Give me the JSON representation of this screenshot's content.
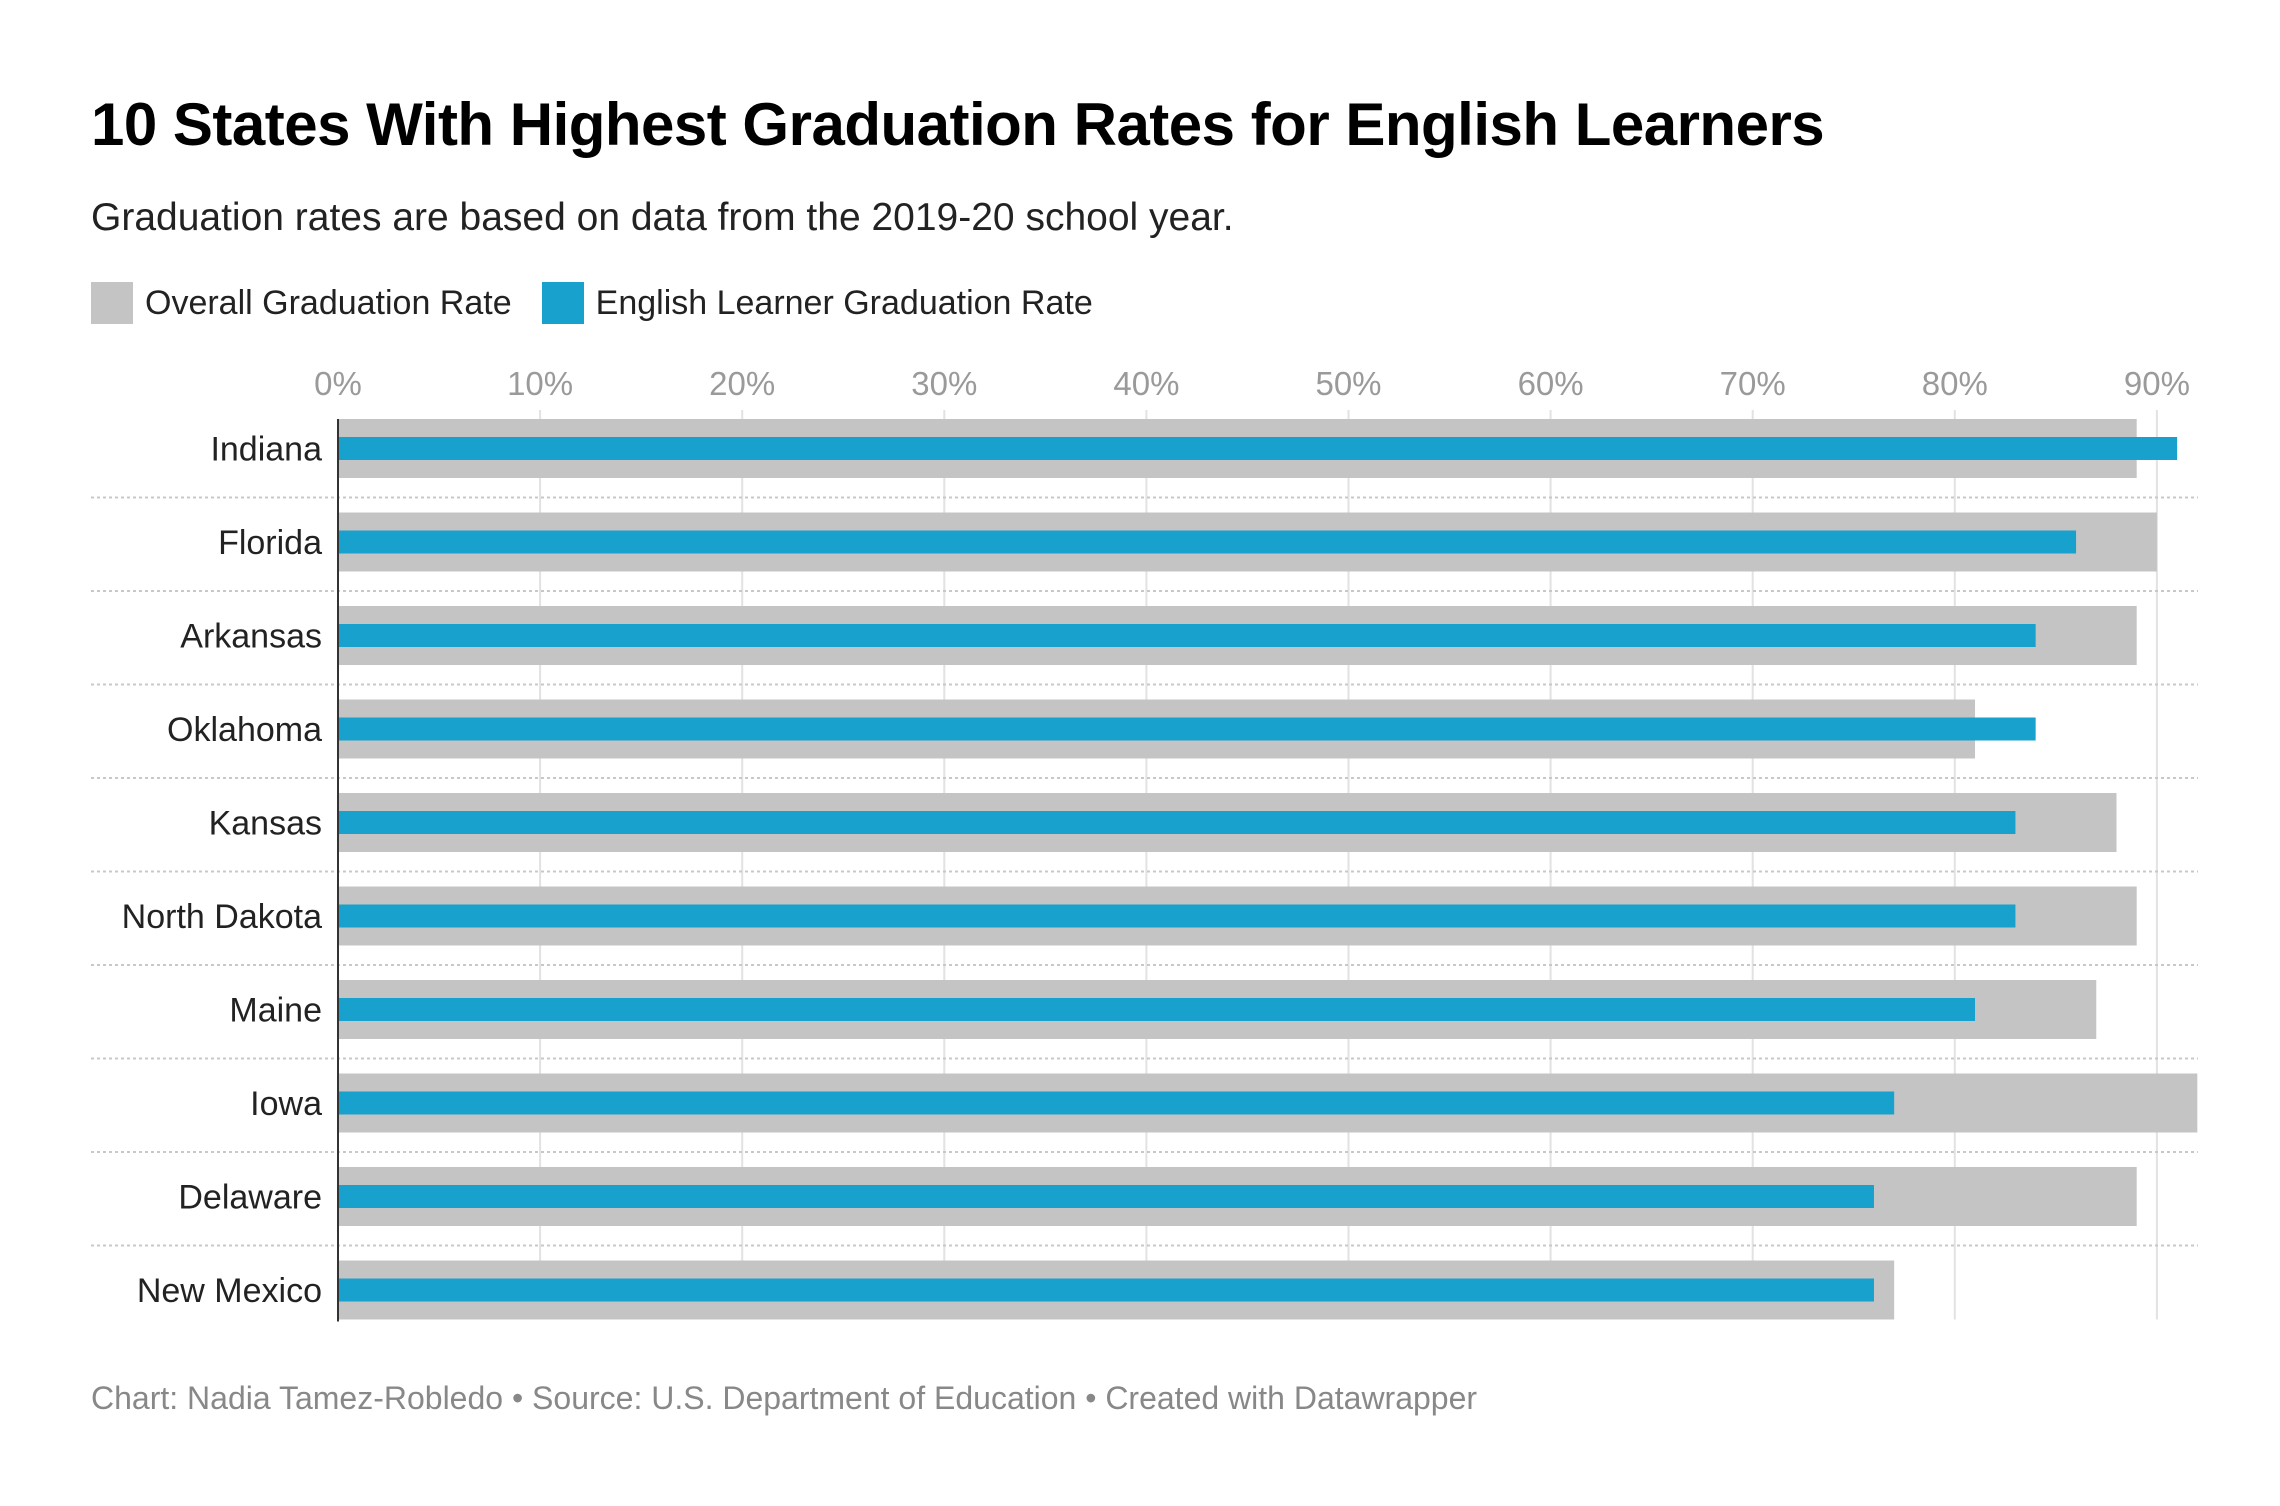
{
  "title": "10 States With Highest Graduation Rates for English Learners",
  "subtitle": "Graduation rates are based on data from the 2019-20 school year.",
  "footer": "Chart: Nadia Tamez-Robledo • Source: U.S. Department of Education • Created with Datawrapper",
  "chart_data": {
    "type": "bar",
    "orientation": "horizontal",
    "categories": [
      "Indiana",
      "Florida",
      "Arkansas",
      "Oklahoma",
      "Kansas",
      "North Dakota",
      "Maine",
      "Iowa",
      "Delaware",
      "New Mexico"
    ],
    "series": [
      {
        "name": "Overall Graduation Rate",
        "color": "#c4c4c4",
        "values": [
          89,
          90,
          89,
          81,
          88,
          89,
          87,
          92,
          89,
          77
        ]
      },
      {
        "name": "English Learner Graduation Rate",
        "color": "#18a1cd",
        "values": [
          91,
          86,
          84,
          84,
          83,
          83,
          81,
          77,
          76,
          76
        ]
      }
    ],
    "xlim": [
      0,
      92
    ],
    "xticks": [
      "0%",
      "10%",
      "20%",
      "30%",
      "40%",
      "50%",
      "60%",
      "70%",
      "80%",
      "90%"
    ],
    "grid": true,
    "legend_position": "top-left"
  }
}
